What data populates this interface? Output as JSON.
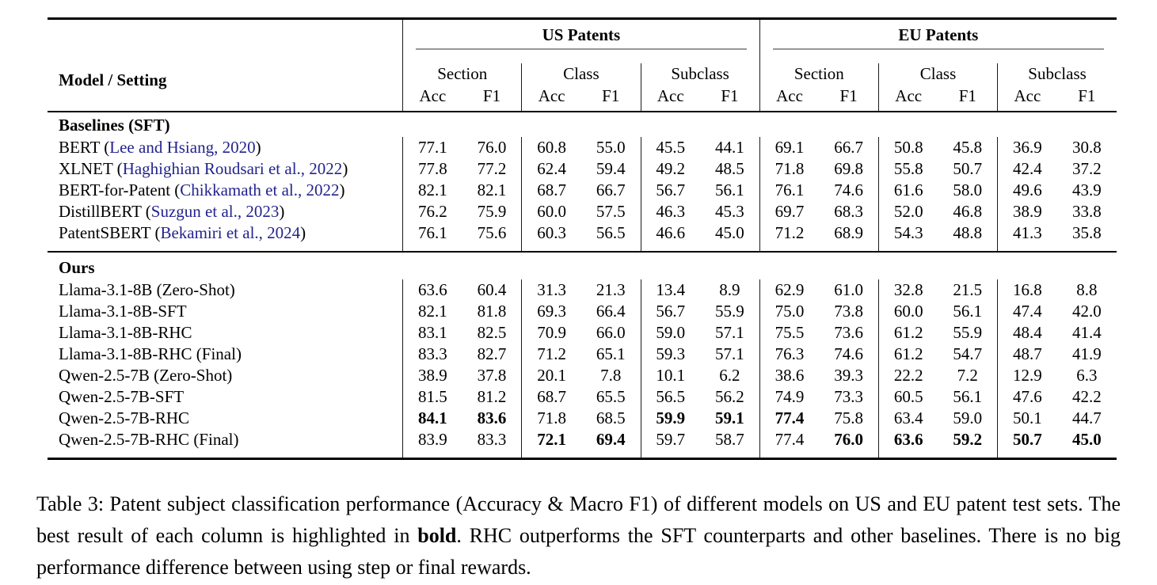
{
  "colors": {
    "citation_link": "#23238f",
    "heavy_rule": "#000000",
    "cmidrule": "#979797"
  },
  "table": {
    "model_header": "Model / Setting",
    "groups": [
      {
        "label": "US Patents"
      },
      {
        "label": "EU Patents"
      }
    ],
    "subgroups": [
      "Section",
      "Class",
      "Subclass"
    ],
    "metrics": [
      "Acc",
      "F1"
    ],
    "sections": [
      {
        "title": "Baselines (SFT)",
        "rows": [
          {
            "model": "BERT",
            "citation": "Lee and Hsiang, 2020",
            "values": [
              "77.1",
              "76.0",
              "60.8",
              "55.0",
              "45.5",
              "44.1",
              "69.1",
              "66.7",
              "50.8",
              "45.8",
              "36.9",
              "30.8"
            ],
            "bold": []
          },
          {
            "model": "XLNET",
            "citation": "Haghighian Roudsari et al., 2022",
            "values": [
              "77.8",
              "77.2",
              "62.4",
              "59.4",
              "49.2",
              "48.5",
              "71.8",
              "69.8",
              "55.8",
              "50.7",
              "42.4",
              "37.2"
            ],
            "bold": []
          },
          {
            "model": "BERT-for-Patent",
            "citation": "Chikkamath et al., 2022",
            "values": [
              "82.1",
              "82.1",
              "68.7",
              "66.7",
              "56.7",
              "56.1",
              "76.1",
              "74.6",
              "61.6",
              "58.0",
              "49.6",
              "43.9"
            ],
            "bold": []
          },
          {
            "model": "DistillBERT",
            "citation": "Suzgun et al., 2023",
            "values": [
              "76.2",
              "75.9",
              "60.0",
              "57.5",
              "46.3",
              "45.3",
              "69.7",
              "68.3",
              "52.0",
              "46.8",
              "38.9",
              "33.8"
            ],
            "bold": []
          },
          {
            "model": "PatentSBERT",
            "citation": "Bekamiri et al., 2024",
            "values": [
              "76.1",
              "75.6",
              "60.3",
              "56.5",
              "46.6",
              "45.0",
              "71.2",
              "68.9",
              "54.3",
              "48.8",
              "41.3",
              "35.8"
            ],
            "bold": []
          }
        ]
      },
      {
        "title": "Ours",
        "rows": [
          {
            "model": "Llama-3.1-8B (Zero-Shot)",
            "citation": null,
            "values": [
              "63.6",
              "60.4",
              "31.3",
              "21.3",
              "13.4",
              "8.9",
              "62.9",
              "61.0",
              "32.8",
              "21.5",
              "16.8",
              "8.8"
            ],
            "bold": []
          },
          {
            "model": "Llama-3.1-8B-SFT",
            "citation": null,
            "values": [
              "82.1",
              "81.8",
              "69.3",
              "66.4",
              "56.7",
              "55.9",
              "75.0",
              "73.8",
              "60.0",
              "56.1",
              "47.4",
              "42.0"
            ],
            "bold": []
          },
          {
            "model": "Llama-3.1-8B-RHC",
            "citation": null,
            "values": [
              "83.1",
              "82.5",
              "70.9",
              "66.0",
              "59.0",
              "57.1",
              "75.5",
              "73.6",
              "61.2",
              "55.9",
              "48.4",
              "41.4"
            ],
            "bold": []
          },
          {
            "model": "Llama-3.1-8B-RHC (Final)",
            "citation": null,
            "values": [
              "83.3",
              "82.7",
              "71.2",
              "65.1",
              "59.3",
              "57.1",
              "76.3",
              "74.6",
              "61.2",
              "54.7",
              "48.7",
              "41.9"
            ],
            "bold": []
          },
          {
            "model": "Qwen-2.5-7B (Zero-Shot)",
            "citation": null,
            "values": [
              "38.9",
              "37.8",
              "20.1",
              "7.8",
              "10.1",
              "6.2",
              "38.6",
              "39.3",
              "22.2",
              "7.2",
              "12.9",
              "6.3"
            ],
            "bold": []
          },
          {
            "model": "Qwen-2.5-7B-SFT",
            "citation": null,
            "values": [
              "81.5",
              "81.2",
              "68.7",
              "65.5",
              "56.5",
              "56.2",
              "74.9",
              "73.3",
              "60.5",
              "56.1",
              "47.6",
              "42.2"
            ],
            "bold": []
          },
          {
            "model": "Qwen-2.5-7B-RHC",
            "citation": null,
            "values": [
              "84.1",
              "83.6",
              "71.8",
              "68.5",
              "59.9",
              "59.1",
              "77.4",
              "75.8",
              "63.4",
              "59.0",
              "50.1",
              "44.7"
            ],
            "bold": [
              0,
              1,
              4,
              5,
              6
            ]
          },
          {
            "model": "Qwen-2.5-7B-RHC (Final)",
            "citation": null,
            "values": [
              "83.9",
              "83.3",
              "72.1",
              "69.4",
              "59.7",
              "58.7",
              "77.4",
              "76.0",
              "63.6",
              "59.2",
              "50.7",
              "45.0"
            ],
            "bold": [
              2,
              3,
              7,
              8,
              9,
              10,
              11
            ]
          }
        ]
      }
    ]
  },
  "caption": {
    "part1": "Table 3: Patent subject classification performance (Accuracy & Macro F1) of different models on US and EU patent test sets. The best result of each column is highlighted in ",
    "bold_word": "bold",
    "part2": ". RHC outperforms the SFT counterparts and other baselines. There is no big performance difference between using step or final rewards."
  }
}
